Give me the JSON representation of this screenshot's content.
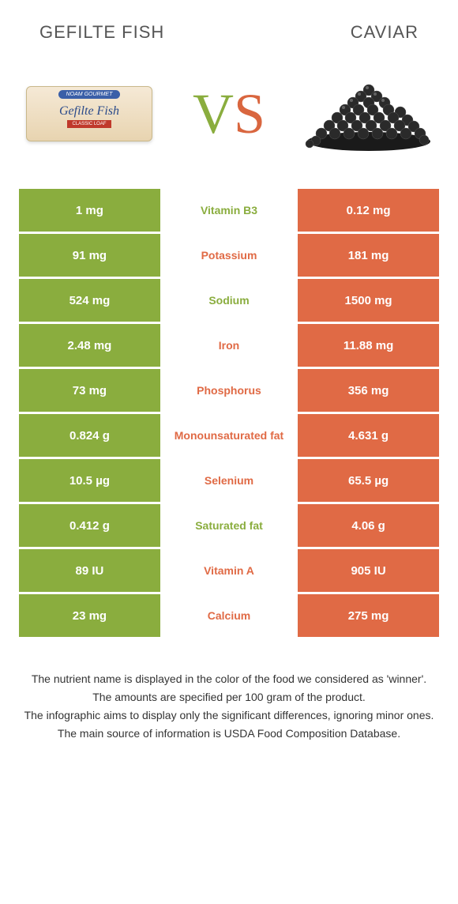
{
  "header": {
    "left_title": "GEFILTE FISH",
    "right_title": "CAVIAR"
  },
  "vs": {
    "v": "V",
    "s": "S"
  },
  "colors": {
    "green": "#8aad3e",
    "orange": "#e06a45",
    "orange_dark": "#d9663f"
  },
  "rows": [
    {
      "left": "1 mg",
      "nutrient": "Vitamin B3",
      "right": "0.12 mg",
      "winner": "green"
    },
    {
      "left": "91 mg",
      "nutrient": "Potassium",
      "right": "181 mg",
      "winner": "orange"
    },
    {
      "left": "524 mg",
      "nutrient": "Sodium",
      "right": "1500 mg",
      "winner": "green"
    },
    {
      "left": "2.48 mg",
      "nutrient": "Iron",
      "right": "11.88 mg",
      "winner": "orange"
    },
    {
      "left": "73 mg",
      "nutrient": "Phosphorus",
      "right": "356 mg",
      "winner": "orange"
    },
    {
      "left": "0.824 g",
      "nutrient": "Monounsaturated fat",
      "right": "4.631 g",
      "winner": "orange"
    },
    {
      "left": "10.5 µg",
      "nutrient": "Selenium",
      "right": "65.5 µg",
      "winner": "orange"
    },
    {
      "left": "0.412 g",
      "nutrient": "Saturated fat",
      "right": "4.06 g",
      "winner": "green"
    },
    {
      "left": "89 IU",
      "nutrient": "Vitamin A",
      "right": "905 IU",
      "winner": "orange"
    },
    {
      "left": "23 mg",
      "nutrient": "Calcium",
      "right": "275 mg",
      "winner": "orange"
    }
  ],
  "footer": {
    "line1": "The nutrient name is displayed in the color of the food we considered as 'winner'.",
    "line2": "The amounts are specified per 100 gram of the product.",
    "line3": "The infographic aims to display only the significant differences, ignoring minor ones.",
    "line4": "The main source of information is USDA Food Composition Database."
  },
  "gefilte_image": {
    "banner": "NOAM GOURMET",
    "label": "Gefilte Fish",
    "tag": "CLASSIC LOAF"
  }
}
